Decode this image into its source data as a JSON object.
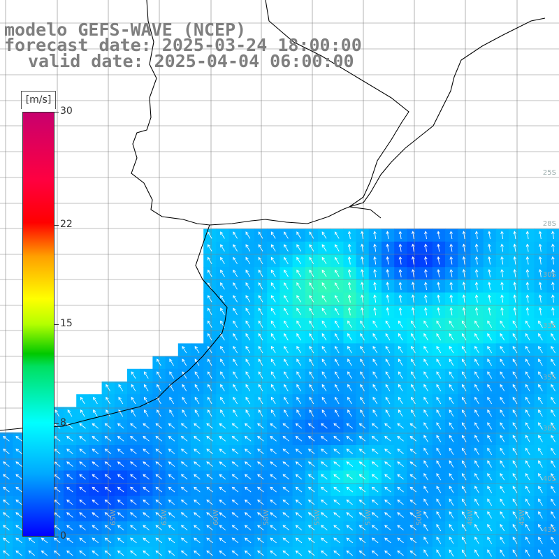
{
  "titles": {
    "line1": "modelo GEFS-WAVE (NCEP)",
    "line2": "forecast date: 2025-03-24 18:00:00",
    "line3": "valid date: 2025-04-04 06:00:00"
  },
  "colorbar": {
    "unit": "[m/s]",
    "min": 0,
    "max": 30,
    "ticks": [
      {
        "label": "30",
        "value": 30
      },
      {
        "label": "22",
        "value": 22
      },
      {
        "label": "15",
        "value": 15
      },
      {
        "label": "8",
        "value": 8
      },
      {
        "label": "0",
        "value": 0
      }
    ]
  },
  "map": {
    "lat_labels": [
      "25S",
      "28S",
      "30S",
      "33S",
      "35S",
      "38S",
      "40S",
      "43S"
    ],
    "lon_labels": [
      "65W",
      "63W",
      "60W",
      "58W",
      "55W",
      "53W",
      "50W",
      "48W",
      "45W"
    ],
    "colors": {
      "land": "#ffffff",
      "coast": "#000000",
      "grid": "#808080",
      "arrows": "#ffffff"
    }
  }
}
